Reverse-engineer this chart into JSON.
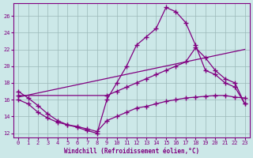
{
  "xlabel": "Windchill (Refroidissement éolien,°C)",
  "background_color": "#cce8e8",
  "line_color": "#800080",
  "xlim": [
    -0.5,
    23.5
  ],
  "ylim": [
    11.5,
    27.5
  ],
  "yticks": [
    12,
    14,
    16,
    18,
    20,
    22,
    24,
    26
  ],
  "xticks": [
    0,
    1,
    2,
    3,
    4,
    5,
    6,
    7,
    8,
    9,
    10,
    11,
    12,
    13,
    14,
    15,
    16,
    17,
    18,
    19,
    20,
    21,
    22,
    23
  ],
  "series1_x": [
    0,
    1,
    2,
    3,
    4,
    5,
    6,
    7,
    8,
    9,
    10,
    11,
    12,
    13,
    14,
    15,
    16,
    17,
    18,
    19,
    20,
    21,
    22,
    23
  ],
  "series1_y": [
    17.0,
    16.2,
    15.3,
    14.3,
    13.5,
    13.0,
    12.7,
    12.3,
    12.0,
    16.0,
    18.0,
    20.0,
    22.5,
    23.5,
    24.5,
    27.0,
    26.5,
    25.2,
    22.5,
    19.5,
    19.0,
    18.0,
    17.5,
    15.5
  ],
  "series2_x": [
    0,
    9,
    10,
    11,
    12,
    13,
    14,
    15,
    16,
    17,
    18,
    19,
    20,
    21,
    22,
    23
  ],
  "series2_y": [
    16.5,
    16.5,
    17.0,
    17.5,
    18.0,
    18.5,
    19.0,
    19.5,
    20.0,
    20.5,
    22.2,
    21.0,
    19.5,
    18.5,
    18.0,
    15.5
  ],
  "series3_x": [
    0,
    23
  ],
  "series3_y": [
    16.3,
    22.0
  ],
  "series4_x": [
    0,
    1,
    2,
    3,
    4,
    5,
    6,
    7,
    8,
    9,
    10,
    11,
    12,
    13,
    14,
    15,
    16,
    17,
    18,
    19,
    20,
    21,
    22,
    23
  ],
  "series4_y": [
    16.0,
    15.5,
    14.5,
    13.8,
    13.3,
    13.0,
    12.8,
    12.5,
    12.2,
    13.5,
    14.0,
    14.5,
    15.0,
    15.2,
    15.5,
    15.8,
    16.0,
    16.2,
    16.3,
    16.4,
    16.5,
    16.5,
    16.3,
    16.2
  ]
}
